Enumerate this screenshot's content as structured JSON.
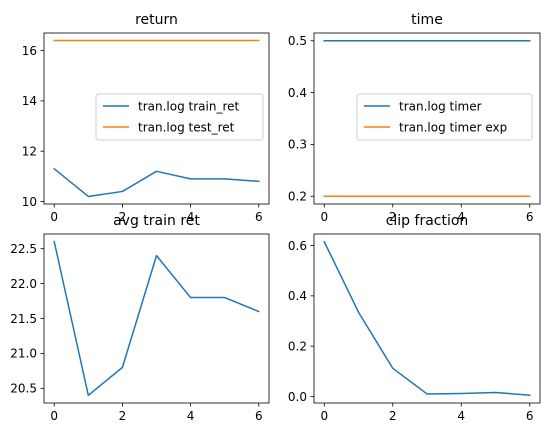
{
  "chart_data": [
    {
      "type": "line",
      "title": "return",
      "x": [
        0,
        1,
        2,
        3,
        4,
        5,
        6
      ],
      "xlim": [
        -0.3,
        6.3
      ],
      "ylim": [
        9.9,
        16.7
      ],
      "xticks": [
        0,
        2,
        4,
        6
      ],
      "xtick_labels": [
        "0",
        "2",
        "4",
        "6"
      ],
      "yticks": [
        10,
        12,
        14,
        16
      ],
      "ytick_labels": [
        "10",
        "12",
        "14",
        "16"
      ],
      "legend_position": "center-right",
      "series": [
        {
          "name": "tran.log train_ret",
          "color": "#1f77b4",
          "values": [
            11.3,
            10.2,
            10.4,
            11.2,
            10.9,
            10.9,
            10.8
          ]
        },
        {
          "name": "tran.log test_ret",
          "color": "#ff7f0e",
          "values": [
            16.4,
            16.4,
            16.4,
            16.4,
            16.4,
            16.4,
            16.4
          ]
        }
      ]
    },
    {
      "type": "line",
      "title": "time",
      "x": [
        0,
        1,
        2,
        3,
        4,
        5,
        6
      ],
      "xlim": [
        -0.3,
        6.3
      ],
      "ylim": [
        0.185,
        0.515
      ],
      "xticks": [
        0,
        2,
        4,
        6
      ],
      "xtick_labels": [
        "0",
        "2",
        "4",
        "6"
      ],
      "yticks": [
        0.2,
        0.3,
        0.4,
        0.5
      ],
      "ytick_labels": [
        "0.2",
        "0.3",
        "0.4",
        "0.5"
      ],
      "legend_position": "center-right",
      "series": [
        {
          "name": "tran.log timer",
          "color": "#1f77b4",
          "values": [
            0.5,
            0.5,
            0.5,
            0.5,
            0.5,
            0.5,
            0.5
          ]
        },
        {
          "name": "tran.log timer exp",
          "color": "#ff7f0e",
          "values": [
            0.2,
            0.2,
            0.2,
            0.2,
            0.2,
            0.2,
            0.2
          ]
        }
      ]
    },
    {
      "type": "line",
      "title": "avg train ret",
      "x": [
        0,
        1,
        2,
        3,
        4,
        5,
        6
      ],
      "xlim": [
        -0.3,
        6.3
      ],
      "ylim": [
        20.29,
        22.71
      ],
      "xticks": [
        0,
        2,
        4,
        6
      ],
      "xtick_labels": [
        "0",
        "2",
        "4",
        "6"
      ],
      "yticks": [
        20.5,
        21.0,
        21.5,
        22.0,
        22.5
      ],
      "ytick_labels": [
        "20.5",
        "21.0",
        "21.5",
        "22.0",
        "22.5"
      ],
      "series": [
        {
          "color": "#1f77b4",
          "values": [
            22.6,
            20.4,
            20.8,
            22.4,
            21.8,
            21.8,
            21.6
          ]
        }
      ]
    },
    {
      "type": "line",
      "title": "clip fraction",
      "x": [
        0,
        1,
        2,
        3,
        4,
        5,
        6
      ],
      "xlim": [
        -0.3,
        6.3
      ],
      "ylim": [
        -0.026,
        0.646
      ],
      "xticks": [
        0,
        2,
        4,
        6
      ],
      "xtick_labels": [
        "0",
        "2",
        "4",
        "6"
      ],
      "yticks": [
        0.0,
        0.2,
        0.4,
        0.6
      ],
      "ytick_labels": [
        "0.0",
        "0.2",
        "0.4",
        "0.6"
      ],
      "series": [
        {
          "color": "#1f77b4",
          "values": [
            0.615,
            0.335,
            0.112,
            0.01,
            0.012,
            0.016,
            0.005
          ]
        }
      ]
    }
  ]
}
